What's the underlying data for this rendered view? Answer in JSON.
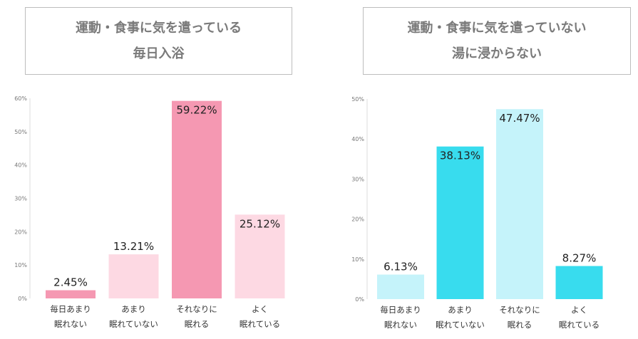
{
  "panels": [
    {
      "title_line1": "運動・食事に気を遣っている",
      "title_line2": "毎日入浴",
      "chart_data": {
        "type": "bar",
        "title": "運動・食事に気を遣っている 毎日入浴",
        "categories": [
          [
            "毎日あまり",
            "眠れない"
          ],
          [
            "あまり",
            "眠れていない"
          ],
          [
            "それなりに",
            "眠れる"
          ],
          [
            "よく",
            "眠れている"
          ]
        ],
        "values": [
          2.45,
          13.21,
          59.22,
          25.12
        ],
        "value_labels": [
          "2.45%",
          "13.21%",
          "59.22%",
          "25.12%"
        ],
        "bar_colors": [
          "#f598b2",
          "#fdd9e3",
          "#f598b2",
          "#fdd9e3"
        ],
        "ylim": [
          0,
          60
        ],
        "yticks": [
          0,
          10,
          20,
          30,
          40,
          50,
          60
        ],
        "ytick_labels": [
          "0%",
          "10%",
          "20%",
          "30%",
          "40%",
          "50%",
          "60%"
        ],
        "xlabel": "",
        "ylabel": ""
      }
    },
    {
      "title_line1": "運動・食事に気を遣っていない",
      "title_line2": "湯に浸からない",
      "chart_data": {
        "type": "bar",
        "title": "運動・食事に気を遣っていない 湯に浸からない",
        "categories": [
          [
            "毎日あまり",
            "眠れない"
          ],
          [
            "あまり",
            "眠れていない"
          ],
          [
            "それなりに",
            "眠れる"
          ],
          [
            "よく",
            "眠れている"
          ]
        ],
        "values": [
          6.13,
          38.13,
          47.47,
          8.27
        ],
        "value_labels": [
          "6.13%",
          "38.13%",
          "47.47%",
          "8.27%"
        ],
        "bar_colors": [
          "#c5f3fa",
          "#38dcee",
          "#c5f3fa",
          "#38dcee"
        ],
        "ylim": [
          0,
          50
        ],
        "yticks": [
          0,
          10,
          20,
          30,
          40,
          50
        ],
        "ytick_labels": [
          "0%",
          "10%",
          "20%",
          "30%",
          "40%",
          "50%"
        ],
        "xlabel": "",
        "ylabel": ""
      }
    }
  ]
}
